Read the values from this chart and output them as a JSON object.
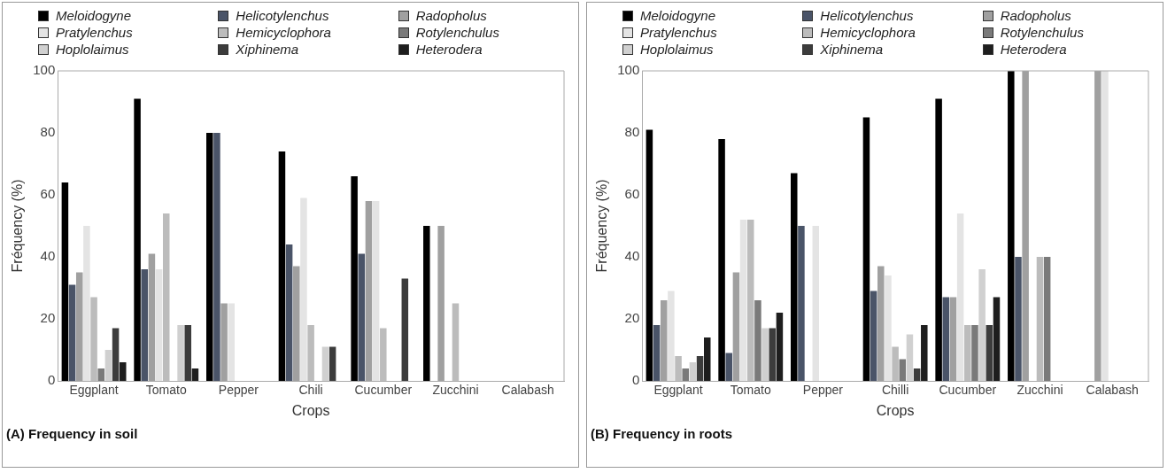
{
  "chart_data": [
    {
      "type": "bar",
      "title": "(A) Frequency in soil",
      "xlabel": "Crops",
      "ylabel": "Fréquency (%)",
      "categories": [
        "Eggplant",
        "Tomato",
        "Pepper",
        "Chili",
        "Cucumber",
        "Zucchini",
        "Calabash"
      ],
      "series": [
        {
          "name": "Meloidogyne",
          "color": "#000000",
          "values": [
            64,
            91,
            80,
            74,
            66,
            50,
            0
          ]
        },
        {
          "name": "Helicotylenchus",
          "color": "#4a5468",
          "values": [
            31,
            36,
            80,
            44,
            41,
            0,
            0
          ]
        },
        {
          "name": "Radopholus",
          "color": "#a0a0a0",
          "values": [
            35,
            41,
            25,
            37,
            58,
            50,
            0
          ]
        },
        {
          "name": "Pratylenchus",
          "color": "#e4e4e4",
          "values": [
            50,
            36,
            25,
            59,
            58,
            0,
            0
          ]
        },
        {
          "name": "Hemicyclophora",
          "color": "#bcbcbc",
          "values": [
            27,
            54,
            0,
            18,
            17,
            25,
            0
          ]
        },
        {
          "name": "Rotylenchulus",
          "color": "#7a7a7a",
          "values": [
            4,
            0,
            0,
            0,
            0,
            0,
            0
          ]
        },
        {
          "name": "Hoplolaimus",
          "color": "#d0d0d0",
          "values": [
            10,
            18,
            0,
            11,
            0,
            0,
            0
          ]
        },
        {
          "name": "Xiphinema",
          "color": "#3c3c3c",
          "values": [
            17,
            18,
            0,
            11,
            33,
            0,
            0
          ]
        },
        {
          "name": "Heterodera",
          "color": "#1e1e1e",
          "values": [
            6,
            4,
            0,
            0,
            0,
            0,
            0
          ]
        }
      ],
      "ylim": [
        0,
        100
      ],
      "yticks": [
        0,
        20,
        40,
        60,
        80,
        100
      ],
      "grid": false,
      "legend": "top"
    },
    {
      "type": "bar",
      "title": "(B) Frequency in roots",
      "xlabel": "Crops",
      "ylabel": "Fréquency (%)",
      "categories": [
        "Eggplant",
        "Tomato",
        "Pepper",
        "Chilli",
        "Cucumber",
        "Zucchini",
        "Calabash"
      ],
      "series": [
        {
          "name": "Meloidogyne",
          "color": "#000000",
          "values": [
            81,
            78,
            67,
            85,
            91,
            100,
            0
          ]
        },
        {
          "name": "Helicotylenchus",
          "color": "#4a5468",
          "values": [
            18,
            9,
            50,
            29,
            27,
            40,
            0
          ]
        },
        {
          "name": "Radopholus",
          "color": "#a0a0a0",
          "values": [
            26,
            35,
            0,
            37,
            27,
            100,
            100
          ]
        },
        {
          "name": "Pratylenchus",
          "color": "#e4e4e4",
          "values": [
            29,
            52,
            50,
            34,
            54,
            0,
            100
          ]
        },
        {
          "name": "Hemicyclophora",
          "color": "#bcbcbc",
          "values": [
            8,
            52,
            0,
            11,
            18,
            40,
            0
          ]
        },
        {
          "name": "Rotylenchulus",
          "color": "#7a7a7a",
          "values": [
            4,
            26,
            0,
            7,
            18,
            40,
            0
          ]
        },
        {
          "name": "Hoplolaimus",
          "color": "#d0d0d0",
          "values": [
            6,
            17,
            0,
            15,
            36,
            0,
            0
          ]
        },
        {
          "name": "Xiphinema",
          "color": "#3c3c3c",
          "values": [
            8,
            17,
            0,
            4,
            18,
            0,
            0
          ]
        },
        {
          "name": "Heterodera",
          "color": "#1e1e1e",
          "values": [
            14,
            22,
            0,
            18,
            27,
            0,
            0
          ]
        }
      ],
      "ylim": [
        0,
        100
      ],
      "yticks": [
        0,
        20,
        40,
        60,
        80,
        100
      ],
      "grid": false,
      "legend": "top"
    }
  ]
}
